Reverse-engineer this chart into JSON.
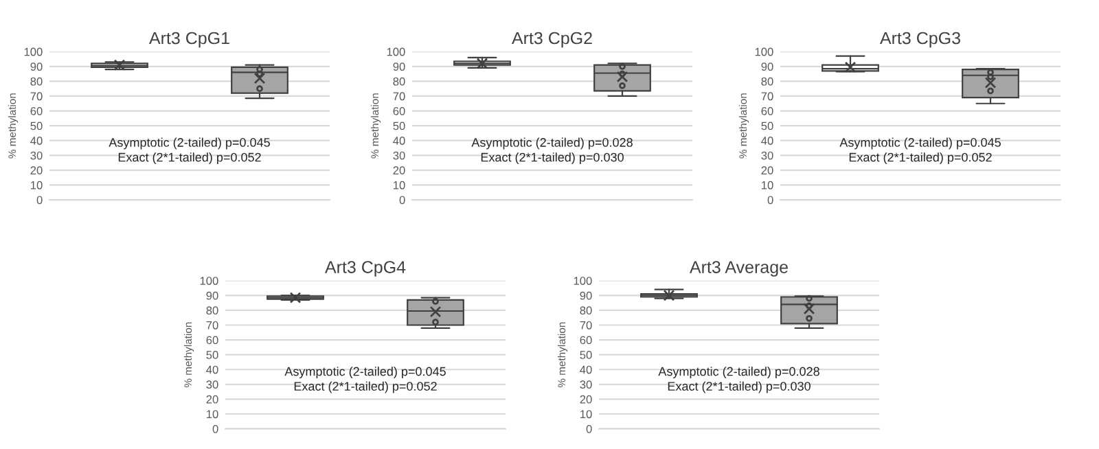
{
  "chart_data": [
    {
      "type": "box",
      "title": "Art3 CpG1",
      "ylabel": "% methylation",
      "categories": [
        null,
        null
      ],
      "colors": [
        "#e7e6e6",
        "#a5a5a5"
      ],
      "ylim": [
        0,
        100
      ],
      "yticks": [
        0,
        10,
        20,
        30,
        40,
        50,
        60,
        70,
        80,
        90,
        100
      ],
      "grid": "y",
      "tick_labels": "y",
      "annotations": [
        "Asymptotic (2-tailed) p=0.045",
        "Exact (2*1-tailed) p=0.052"
      ],
      "boxes": [
        {
          "low": 88,
          "q1": 89.5,
          "median": 90.5,
          "q3": 92,
          "high": 93,
          "mean": 91
        },
        {
          "low": 68.5,
          "q1": 72,
          "median": 86,
          "q3": 89.5,
          "high": 91,
          "mean": 82,
          "outliers": [
            75,
            85,
            88
          ]
        }
      ]
    },
    {
      "type": "box",
      "title": "Art3 CpG2",
      "ylabel": "% methylation",
      "categories": [
        null,
        null
      ],
      "colors": [
        "#e7e6e6",
        "#a5a5a5"
      ],
      "ylim": [
        0,
        100
      ],
      "yticks": [
        0,
        10,
        20,
        30,
        40,
        50,
        60,
        70,
        80,
        90,
        100
      ],
      "grid": "y",
      "tick_labels": "y",
      "annotations": [
        "Asymptotic (2-tailed) p=0.028",
        "Exact (2*1-tailed) p=0.030"
      ],
      "boxes": [
        {
          "low": 89,
          "q1": 91,
          "median": 92,
          "q3": 93.5,
          "high": 96,
          "mean": 92
        },
        {
          "low": 70,
          "q1": 73.5,
          "median": 85.5,
          "q3": 91,
          "high": 92,
          "mean": 83,
          "outliers": [
            77,
            85,
            90
          ]
        }
      ]
    },
    {
      "type": "box",
      "title": "Art3 CpG3",
      "ylabel": "% methylation",
      "categories": [
        null,
        null
      ],
      "colors": [
        "#ffffff",
        "#a5a5a5"
      ],
      "ylim": [
        0,
        100
      ],
      "yticks": [
        0,
        10,
        20,
        30,
        40,
        50,
        60,
        70,
        80,
        90,
        100
      ],
      "grid": "y",
      "tick_labels": "y",
      "annotations": [
        "Asymptotic (2-tailed) p=0.045",
        "Exact (2*1-tailed) p=0.052"
      ],
      "boxes": [
        {
          "low": 86.5,
          "q1": 87,
          "median": 88.5,
          "q3": 91,
          "high": 97,
          "mean": 89.5
        },
        {
          "low": 65,
          "q1": 69,
          "median": 84,
          "q3": 88,
          "high": 88.5,
          "mean": 79,
          "outliers": [
            73.5,
            83,
            86
          ]
        }
      ]
    },
    {
      "type": "box",
      "title": "Art3 CpG4",
      "ylabel": "% methylation",
      "categories": [
        null,
        null
      ],
      "colors": [
        "#ffffff",
        "#a5a5a5"
      ],
      "ylim": [
        0,
        100
      ],
      "yticks": [
        0,
        10,
        20,
        30,
        40,
        50,
        60,
        70,
        80,
        90,
        100
      ],
      "grid": "y",
      "tick_labels": "y",
      "annotations": [
        "Asymptotic (2-tailed) p=0.045",
        "Exact (2*1-tailed) p=0.052"
      ],
      "boxes": [
        {
          "low": 87,
          "q1": 87.5,
          "median": 88.5,
          "q3": 89.5,
          "high": 90,
          "mean": 88.5
        },
        {
          "low": 68,
          "q1": 70,
          "median": 79.5,
          "q3": 87,
          "high": 88.5,
          "mean": 79,
          "outliers": [
            72,
            86
          ]
        }
      ]
    },
    {
      "type": "box",
      "title": "Art3 Average",
      "ylabel": "% methylation",
      "categories": [
        null,
        null
      ],
      "colors": [
        "#e7e6e6",
        "#a5a5a5"
      ],
      "ylim": [
        0,
        100
      ],
      "yticks": [
        0,
        10,
        20,
        30,
        40,
        50,
        60,
        70,
        80,
        90,
        100
      ],
      "grid": "y",
      "tick_labels": "y",
      "annotations": [
        "Asymptotic (2-tailed) p=0.028",
        "Exact (2*1-tailed) p=0.030"
      ],
      "boxes": [
        {
          "low": 88,
          "q1": 89,
          "median": 90,
          "q3": 91,
          "high": 94,
          "mean": 90
        },
        {
          "low": 68,
          "q1": 71,
          "median": 84,
          "q3": 89,
          "high": 89.5,
          "mean": 81,
          "outliers": [
            74.5,
            83,
            88
          ]
        }
      ]
    }
  ]
}
